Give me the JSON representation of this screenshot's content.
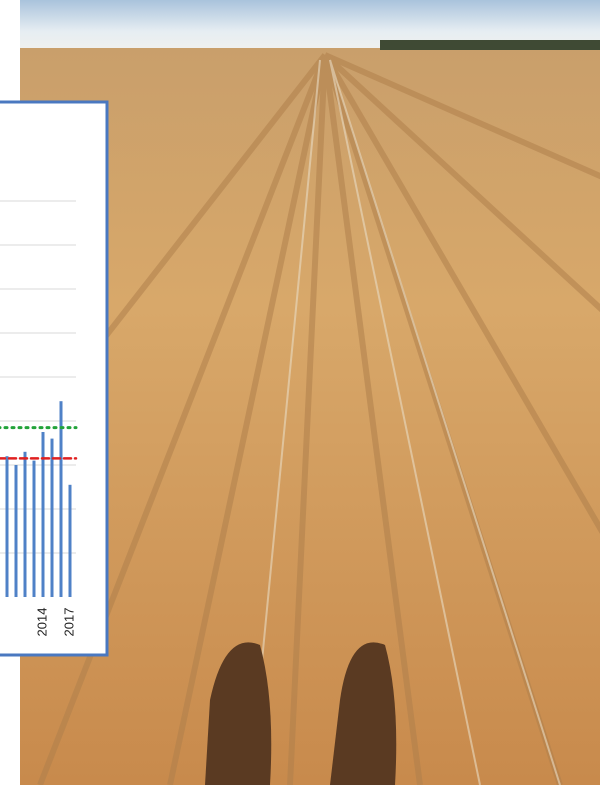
{
  "chart_data": {
    "type": "bar",
    "categories": [
      null,
      null,
      null,
      null,
      "2014",
      null,
      null,
      "2017"
    ],
    "values": [
      3.2,
      3.0,
      3.3,
      3.1,
      3.75,
      3.6,
      4.45,
      2.55
    ],
    "color": "#4f81c7",
    "ylim": [
      0,
      10
    ],
    "yticks": [
      1,
      2,
      3,
      4,
      5,
      6,
      7,
      8,
      9
    ],
    "grid": true,
    "reference_lines": [
      {
        "value": 3.15,
        "color": "#e02020",
        "style": "dashed"
      },
      {
        "value": 3.85,
        "color": "#22a33a",
        "style": "dotted"
      }
    ]
  }
}
